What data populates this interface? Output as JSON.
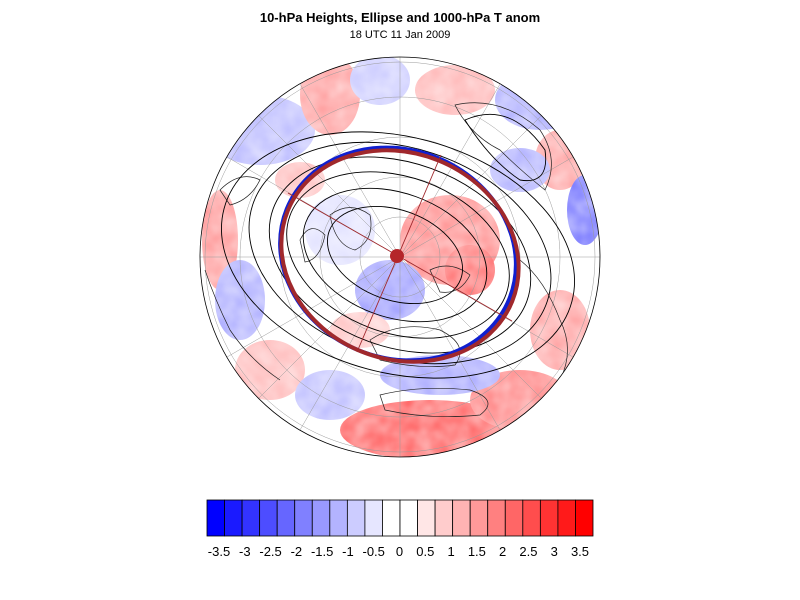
{
  "title": "10-hPa Heights, Ellipse and 1000-hPa T anom",
  "subtitle": "18 UTC 11 Jan 2009",
  "map": {
    "projection": "polar stereographic (north pole)",
    "grid": true,
    "coastlines": true,
    "ellipse_color": "#a0282c",
    "center_dot_color": "#b5262a",
    "contour_color": "#000000"
  },
  "colorbar": {
    "tick_labels": [
      "-3.5",
      "-3",
      "-2.5",
      "-2",
      "-1.5",
      "-1",
      "-0.5",
      "0",
      "0.5",
      "1",
      "1.5",
      "2",
      "2.5",
      "3",
      "3.5"
    ],
    "colors": [
      "#0000ff",
      "#1a1aff",
      "#3333ff",
      "#4d4dff",
      "#6666ff",
      "#8080ff",
      "#9999ff",
      "#b3b3ff",
      "#ccccff",
      "#e6e6ff",
      "#ffffff",
      "#ffffff",
      "#ffe6e6",
      "#ffcccc",
      "#ffb3b3",
      "#ff9999",
      "#ff8080",
      "#ff6666",
      "#ff4d4d",
      "#ff3333",
      "#ff1a1a",
      "#ff0000"
    ]
  }
}
